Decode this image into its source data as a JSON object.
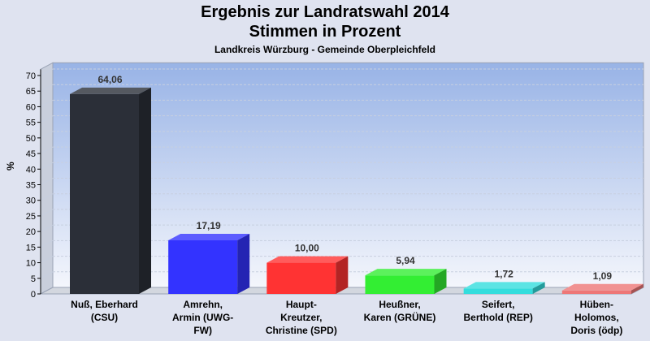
{
  "header": {
    "title_line1": "Ergebnis zur Landratswahl 2014",
    "title_line2": "Stimmen in Prozent",
    "subtitle": "Landkreis Würzburg - Gemeinde Oberpleichfeld"
  },
  "chart_data": {
    "type": "bar",
    "title": "Ergebnis zur Landratswahl 2014 Stimmen in Prozent",
    "subtitle": "Landkreis Würzburg - Gemeinde Oberpleichfeld",
    "xlabel": "",
    "ylabel": "%",
    "ylim": [
      0,
      72
    ],
    "yticks": [
      0,
      5,
      10,
      15,
      20,
      25,
      30,
      35,
      40,
      45,
      50,
      55,
      60,
      65,
      70
    ],
    "grid": true,
    "categories": [
      [
        "Nuß, Eberhard",
        "(CSU)"
      ],
      [
        "Amrehn,",
        "Armin (UWG-",
        "FW)"
      ],
      [
        "Haupt-",
        "Kreutzer,",
        "Christine (SPD)"
      ],
      [
        "Heußner,",
        "Karen (GRÜNE)"
      ],
      [
        "Seifert,",
        "Berthold (REP)"
      ],
      [
        "Hüben-",
        "Holomos,",
        "Doris (ödp)"
      ]
    ],
    "values": [
      64.06,
      17.19,
      10.0,
      5.94,
      1.72,
      1.09
    ],
    "value_labels": [
      "64,06",
      "17,19",
      "10,00",
      "5,94",
      "1,72",
      "1,09"
    ],
    "colors": [
      "#2b2f38",
      "#3333ff",
      "#ff3333",
      "#33ee33",
      "#33dddd",
      "#ee7777"
    ]
  }
}
